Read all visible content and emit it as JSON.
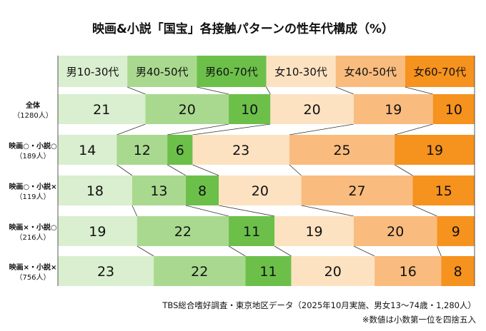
{
  "chart_data": {
    "type": "bar",
    "stacked": true,
    "orientation": "horizontal",
    "title": "映画&小説「国宝」各接触パターンの性年代構成",
    "title_unit": "（%）",
    "legend_position": "top",
    "series_colors": [
      "#d9efcf",
      "#a9d98f",
      "#6cc04a",
      "#fde2c2",
      "#f9bc7e",
      "#f6921e"
    ],
    "series": [
      {
        "name": "男10-30代",
        "values": [
          21,
          14,
          18,
          19,
          23
        ]
      },
      {
        "name": "男40-50代",
        "values": [
          20,
          12,
          13,
          22,
          22
        ]
      },
      {
        "name": "男60-70代",
        "values": [
          10,
          6,
          8,
          11,
          11
        ]
      },
      {
        "name": "女10-30代",
        "values": [
          20,
          23,
          20,
          19,
          20
        ]
      },
      {
        "name": "女40-50代",
        "values": [
          19,
          25,
          27,
          20,
          16
        ]
      },
      {
        "name": "女60-70代",
        "values": [
          10,
          19,
          15,
          9,
          8
        ]
      }
    ],
    "categories": [
      {
        "name": "全体",
        "n": "（1280人）"
      },
      {
        "name": "映画○・小説○",
        "n": "（189人）"
      },
      {
        "name": "映画○・小説×",
        "n": "（119人）"
      },
      {
        "name": "映画×・小説○",
        "n": "（216人）"
      },
      {
        "name": "映画×・小説×",
        "n": "（756人）"
      }
    ],
    "source": "TBS総合嗜好調査・東京地区データ（2025年10月実施、男女13〜74歳・1,280人）",
    "note": "※数値は小数第一位を四捨五入"
  }
}
